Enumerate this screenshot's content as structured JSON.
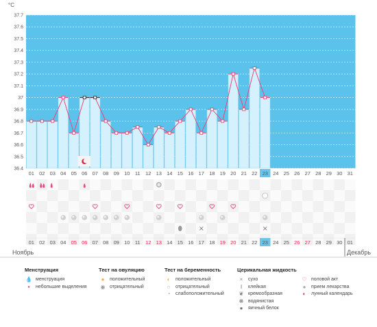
{
  "unit_label": "°C",
  "months": {
    "left": "Ноябрь",
    "right": "Декабрь"
  },
  "colors": {
    "plot_bg": "#5bc2eb",
    "bar_fill": "#d4f1fd",
    "bar_stroke": "#90d4f2",
    "line": "#e8477a",
    "today_bg": "#6cc4ea",
    "weekend": "#e8244f"
  },
  "chart_data": {
    "type": "bar",
    "title": "",
    "xlabel": "",
    "ylabel": "°C",
    "ylim": [
      36.4,
      37.7
    ],
    "yticks": [
      "36.4",
      "36.5",
      "36.6",
      "36.7",
      "36.8",
      "36.9",
      "37",
      "37.1",
      "37.2",
      "37.3",
      "37.4",
      "37.5",
      "37.6",
      "37.7"
    ],
    "categories": [
      "01",
      "02",
      "03",
      "04",
      "05",
      "06",
      "07",
      "08",
      "09",
      "10",
      "11",
      "12",
      "13",
      "14",
      "15",
      "16",
      "17",
      "18",
      "19",
      "20",
      "21",
      "22",
      "23"
    ],
    "values": [
      36.8,
      36.8,
      36.8,
      37.0,
      36.7,
      37.0,
      37.0,
      36.8,
      36.7,
      36.7,
      36.75,
      36.6,
      36.75,
      36.7,
      36.8,
      36.9,
      36.7,
      36.9,
      36.8,
      37.2,
      36.9,
      37.25,
      37.0
    ],
    "coverline_days": [
      "06",
      "07"
    ],
    "today": "23",
    "grid": true
  },
  "top_axis_days": [
    "01",
    "02",
    "03",
    "04",
    "05",
    "06",
    "07",
    "08",
    "09",
    "10",
    "11",
    "12",
    "13",
    "14",
    "15",
    "16",
    "17",
    "18",
    "19",
    "20",
    "21",
    "22",
    "23",
    "24",
    "25",
    "26",
    "27",
    "28",
    "29",
    "30",
    "31"
  ],
  "bottom_axis_days": [
    "01",
    "02",
    "03",
    "04",
    "05",
    "06",
    "07",
    "08",
    "09",
    "10",
    "11",
    "12",
    "13",
    "14",
    "15",
    "16",
    "17",
    "18",
    "19",
    "20",
    "21",
    "22",
    "23",
    "24",
    "25",
    "26",
    "27",
    "28",
    "29",
    "30",
    "01"
  ],
  "bottom_axis_red": [
    "05",
    "06",
    "12",
    "13",
    "19",
    "20",
    "26",
    "27"
  ],
  "legend": {
    "menstruation": {
      "title": "Менструация",
      "items": [
        {
          "icon": "menstruation-drops-icon",
          "label": "менструация"
        },
        {
          "icon": "small-drop-icon",
          "label": "небольшие выделения"
        }
      ]
    },
    "ovulation": {
      "title": "Тест на овуляцию",
      "items": [
        {
          "icon": "ovulation-positive-icon",
          "label": "положительный"
        },
        {
          "icon": "ovulation-negative-icon",
          "label": "отрицательный"
        }
      ]
    },
    "pregnancy": {
      "title": "Тест на беременность",
      "items": [
        {
          "icon": "pregnancy-positive-icon",
          "label": "положительный"
        },
        {
          "icon": "pregnancy-negative-icon",
          "label": "отрицательный"
        },
        {
          "icon": "pregnancy-weak-icon",
          "label": "слабоположительный"
        }
      ]
    },
    "cervical": {
      "title": "Церикальная жидкость",
      "items": [
        {
          "icon": "dry-icon",
          "label": "сухо"
        },
        {
          "icon": "sticky-icon",
          "label": "клейкая"
        },
        {
          "icon": "creamy-icon",
          "label": "кремообразная"
        },
        {
          "icon": "watery-icon",
          "label": "водянистая"
        },
        {
          "icon": "eggwhite-icon",
          "label": "яичный белок"
        }
      ]
    },
    "other": {
      "items": [
        {
          "icon": "intercourse-heart-icon",
          "label": "половой акт"
        },
        {
          "icon": "medicine-icon",
          "label": "прием лекарства"
        },
        {
          "icon": "moon-calendar-icon",
          "label": "лунный календарь"
        }
      ]
    }
  }
}
